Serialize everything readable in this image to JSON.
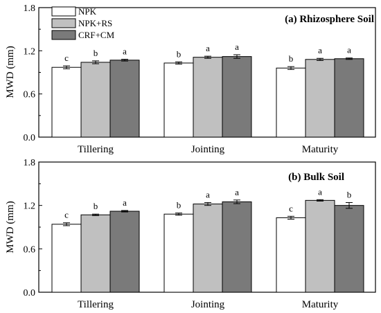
{
  "chart_data": [
    {
      "type": "bar",
      "title": "(a) Rhizosphere Soil",
      "xlabel": "",
      "ylabel": "MWD (mm)",
      "ylim": [
        0,
        1.8
      ],
      "yticks": [
        "0.0",
        "0.6",
        "1.2",
        "1.8"
      ],
      "categories": [
        "Tillering",
        "Jointing",
        "Maturity"
      ],
      "legend_position": "top-left",
      "series": [
        {
          "name": "NPK",
          "color": "#ffffff",
          "values": [
            0.97,
            1.03,
            0.96
          ],
          "errors": [
            0.02,
            0.015,
            0.02
          ],
          "letters": [
            "c",
            "b",
            "b"
          ]
        },
        {
          "name": "NPK+RS",
          "color": "#c0c0c0",
          "values": [
            1.04,
            1.11,
            1.08
          ],
          "errors": [
            0.02,
            0.015,
            0.015
          ],
          "letters": [
            "b",
            "a",
            "a"
          ]
        },
        {
          "name": "CRF+CM",
          "color": "#7a7a7a",
          "values": [
            1.07,
            1.12,
            1.09
          ],
          "errors": [
            0.012,
            0.025,
            0.01
          ],
          "letters": [
            "a",
            "a",
            "a"
          ]
        }
      ]
    },
    {
      "type": "bar",
      "title": "(b) Bulk Soil",
      "xlabel": "",
      "ylabel": "MWD (mm)",
      "ylim": [
        0,
        1.8
      ],
      "yticks": [
        "0.0",
        "0.6",
        "1.2",
        "1.8"
      ],
      "categories": [
        "Tillering",
        "Jointing",
        "Maturity"
      ],
      "series": [
        {
          "name": "NPK",
          "color": "#ffffff",
          "values": [
            0.94,
            1.08,
            1.03
          ],
          "errors": [
            0.02,
            0.015,
            0.02
          ],
          "letters": [
            "c",
            "b",
            "c"
          ]
        },
        {
          "name": "NPK+RS",
          "color": "#c0c0c0",
          "values": [
            1.07,
            1.22,
            1.27
          ],
          "errors": [
            0.01,
            0.02,
            0.01
          ],
          "letters": [
            "b",
            "a",
            "a"
          ]
        },
        {
          "name": "CRF+CM",
          "color": "#7a7a7a",
          "values": [
            1.12,
            1.25,
            1.2
          ],
          "errors": [
            0.01,
            0.025,
            0.04
          ],
          "letters": [
            "a",
            "a",
            "b"
          ]
        }
      ]
    }
  ]
}
